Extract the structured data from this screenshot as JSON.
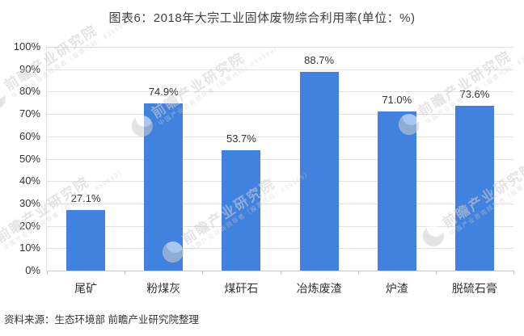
{
  "footer": {
    "source_label": "资料来源：生态环境部 前瞻产业研究院整理"
  },
  "watermark": {
    "brand": "前瞻产业研究院",
    "sub": "中国产业咨询领导者（股票代码：839599）"
  },
  "colors": {
    "bar": "#4182DE",
    "grid": "#E2E2E2",
    "axis": "#C9C9C9",
    "title": "#3F3F3F",
    "text": "#333333",
    "source": "#333333",
    "watermark": "#CFCFCF"
  },
  "chart_data": {
    "type": "bar",
    "title": "图表6：2018年大宗工业固体废物综合利用率(单位：%)",
    "categories": [
      "尾矿",
      "粉煤灰",
      "煤矸石",
      "冶炼废渣",
      "炉渣",
      "脱硫石膏"
    ],
    "values": [
      27.1,
      74.9,
      53.7,
      88.7,
      71.0,
      73.6
    ],
    "value_labels": [
      "27.1%",
      "74.9%",
      "53.7%",
      "88.7%",
      "71.0%",
      "73.6%"
    ],
    "unit": "%",
    "xlabel": "",
    "ylabel": "",
    "ylim": [
      0,
      100
    ],
    "ytick_step": 10,
    "ytick_labels": [
      "0%",
      "10%",
      "20%",
      "30%",
      "40%",
      "50%",
      "60%",
      "70%",
      "80%",
      "90%",
      "100%"
    ],
    "grid": true,
    "legend": "none",
    "bar_color": "#4182DE"
  }
}
